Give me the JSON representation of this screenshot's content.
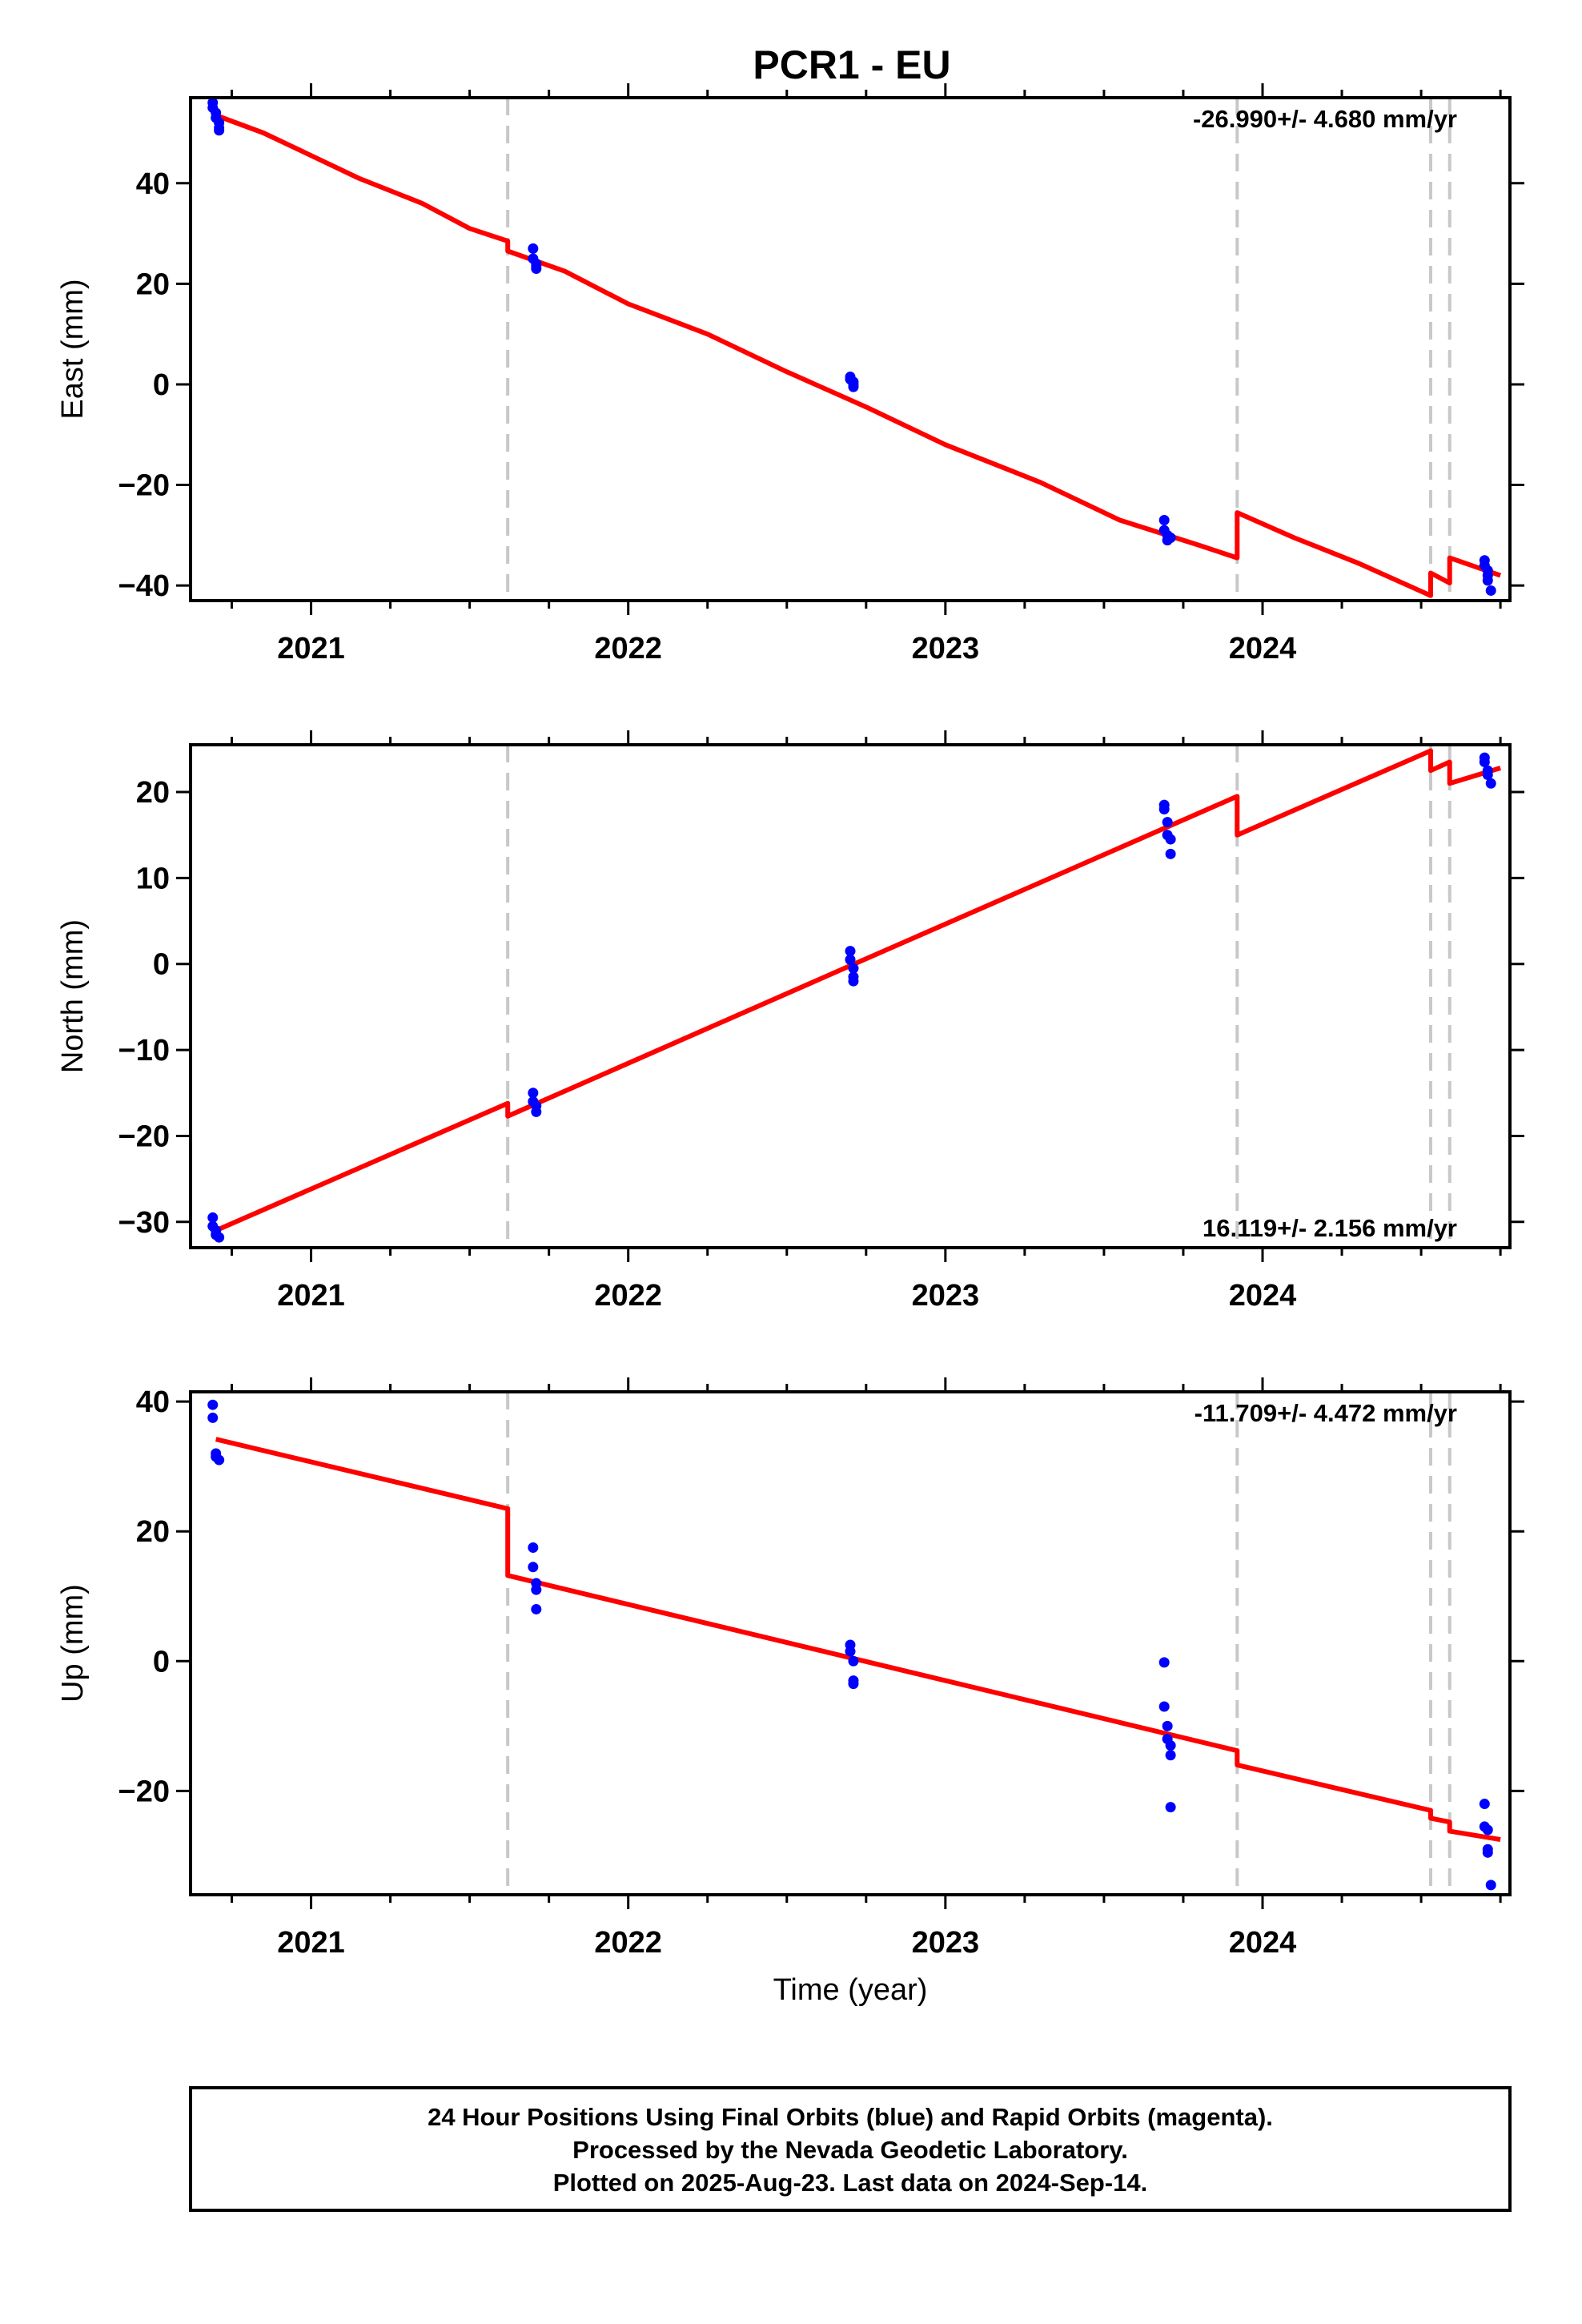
{
  "chart_data": [
    {
      "type": "scatter",
      "title": "PCR1 - EU",
      "ylabel": "East (mm)",
      "xlabel": "",
      "rate_label": "-26.990+/- 4.680 mm/yr",
      "rate_position": "top-right",
      "xlim": [
        2020.62,
        2024.78
      ],
      "ylim": [
        -43,
        57
      ],
      "x_ticks": [
        2021,
        2022,
        2023,
        2024
      ],
      "y_ticks": [
        -40,
        -20,
        0,
        20,
        40
      ],
      "breaks": [
        2021.62,
        2023.92,
        2024.53,
        2024.59
      ],
      "series": [
        {
          "style": "points",
          "color": "#0000ff",
          "x": [
            2020.69,
            2020.69,
            2020.7,
            2020.7,
            2020.71,
            2020.71,
            2020.71,
            2021.7,
            2021.7,
            2021.71,
            2021.71,
            2021.71,
            2022.7,
            2022.7,
            2022.71,
            2022.71,
            2022.71,
            2023.69,
            2023.69,
            2023.7,
            2023.7,
            2023.71,
            2024.7,
            2024.7,
            2024.71,
            2024.71,
            2024.71,
            2024.72
          ],
          "y": [
            56,
            55,
            54,
            53,
            52,
            51,
            50.5,
            27,
            25,
            24,
            23.5,
            23,
            1.5,
            1,
            0.5,
            0,
            -0.5,
            -27,
            -29,
            -30,
            -31,
            -30.5,
            -35,
            -36,
            -37,
            -38,
            -39,
            -41
          ]
        },
        {
          "style": "line",
          "color": "#ff0000",
          "x": [
            2020.7,
            2020.85,
            2021.0,
            2021.15,
            2021.35,
            2021.5,
            2021.62,
            2021.62,
            2021.8,
            2022.0,
            2022.25,
            2022.5,
            2022.75,
            2023.0,
            2023.3,
            2023.55,
            2023.8,
            2023.92,
            2023.92,
            2024.1,
            2024.3,
            2024.53,
            2024.53,
            2024.59,
            2024.59,
            2024.75
          ],
          "y": [
            53.5,
            50,
            45.5,
            41,
            36,
            31,
            28.5,
            26.5,
            22.5,
            16,
            10,
            2.5,
            -4.5,
            -12,
            -19.5,
            -27,
            -32,
            -34.5,
            -25.5,
            -30.5,
            -35.5,
            -42,
            -37.5,
            -39.5,
            -34.5,
            -38
          ]
        }
      ]
    },
    {
      "type": "scatter",
      "title": "",
      "ylabel": "North (mm)",
      "xlabel": "",
      "rate_label": "16.119+/- 2.156 mm/yr",
      "rate_position": "bottom-right",
      "xlim": [
        2020.62,
        2024.78
      ],
      "ylim": [
        -33,
        25.5
      ],
      "x_ticks": [
        2021,
        2022,
        2023,
        2024
      ],
      "y_ticks": [
        -30,
        -20,
        -10,
        0,
        10,
        20
      ],
      "breaks": [
        2021.62,
        2023.92,
        2024.53,
        2024.59
      ],
      "series": [
        {
          "style": "points",
          "color": "#0000ff",
          "x": [
            2020.69,
            2020.69,
            2020.7,
            2020.7,
            2020.71,
            2021.7,
            2021.7,
            2021.71,
            2021.71,
            2022.7,
            2022.7,
            2022.71,
            2022.71,
            2022.71,
            2023.69,
            2023.69,
            2023.7,
            2023.7,
            2023.71,
            2023.71,
            2024.7,
            2024.7,
            2024.71,
            2024.71,
            2024.72
          ],
          "y": [
            -29.5,
            -30.5,
            -31,
            -31.5,
            -31.8,
            -15,
            -16,
            -16.5,
            -17.2,
            1.5,
            0.5,
            -0.5,
            -1.5,
            -2,
            18.5,
            18,
            16.5,
            15,
            14.5,
            12.8,
            24,
            23.5,
            22.5,
            22,
            21
          ],
          "note": ""
        },
        {
          "style": "line",
          "color": "#ff0000",
          "x": [
            2020.7,
            2021.62,
            2021.62,
            2022.7,
            2023.92,
            2023.92,
            2024.53,
            2024.53,
            2024.59,
            2024.59,
            2024.75
          ],
          "y": [
            -31,
            -16.2,
            -17.7,
            -0.2,
            19.5,
            15,
            24.8,
            22.5,
            23.5,
            21,
            22.8
          ]
        }
      ]
    },
    {
      "type": "scatter",
      "title": "",
      "ylabel": "Up (mm)",
      "xlabel": "Time (year)",
      "rate_label": "-11.709+/- 4.472 mm/yr",
      "rate_position": "top-right",
      "xlim": [
        2020.62,
        2024.78
      ],
      "ylim": [
        -36,
        41.5
      ],
      "x_ticks": [
        2021,
        2022,
        2023,
        2024
      ],
      "y_ticks": [
        -20,
        0,
        20,
        40
      ],
      "breaks": [
        2021.62,
        2023.92,
        2024.53,
        2024.59
      ],
      "series": [
        {
          "style": "points",
          "color": "#0000ff",
          "x": [
            2020.69,
            2020.69,
            2020.7,
            2020.7,
            2020.71,
            2021.7,
            2021.7,
            2021.71,
            2021.71,
            2021.71,
            2022.7,
            2022.7,
            2022.71,
            2022.71,
            2022.71,
            2023.69,
            2023.69,
            2023.7,
            2023.7,
            2023.71,
            2023.71,
            2023.71,
            2024.7,
            2024.7,
            2024.71,
            2024.71,
            2024.71,
            2024.72
          ],
          "y": [
            39.5,
            37.5,
            32,
            31.5,
            31,
            17.5,
            14.5,
            12,
            11,
            8,
            2.5,
            1.5,
            0,
            -3,
            -3.5,
            -0.2,
            -7,
            -10,
            -12,
            -13,
            -14.5,
            -22.5,
            -22,
            -25.5,
            -26,
            -29,
            -29.5,
            -34.5
          ]
        },
        {
          "style": "line",
          "color": "#ff0000",
          "x": [
            2020.7,
            2021.62,
            2021.62,
            2023.92,
            2023.92,
            2024.53,
            2024.53,
            2024.59,
            2024.59,
            2024.75
          ],
          "y": [
            34.2,
            23.5,
            13.2,
            -13.8,
            -16,
            -23,
            -24.2,
            -24.8,
            -26.2,
            -27.5
          ]
        }
      ]
    }
  ],
  "footer": {
    "line1": "24 Hour Positions Using Final Orbits (blue) and Rapid Orbits (magenta).",
    "line2": "Processed by the Nevada Geodetic Laboratory.",
    "line3": "Plotted on 2025-Aug-23. Last data on 2024-Sep-14."
  },
  "colors": {
    "points": "#0000ff",
    "fit": "#ff0000",
    "breaks": "#c8c8c8",
    "frame": "#000000"
  }
}
